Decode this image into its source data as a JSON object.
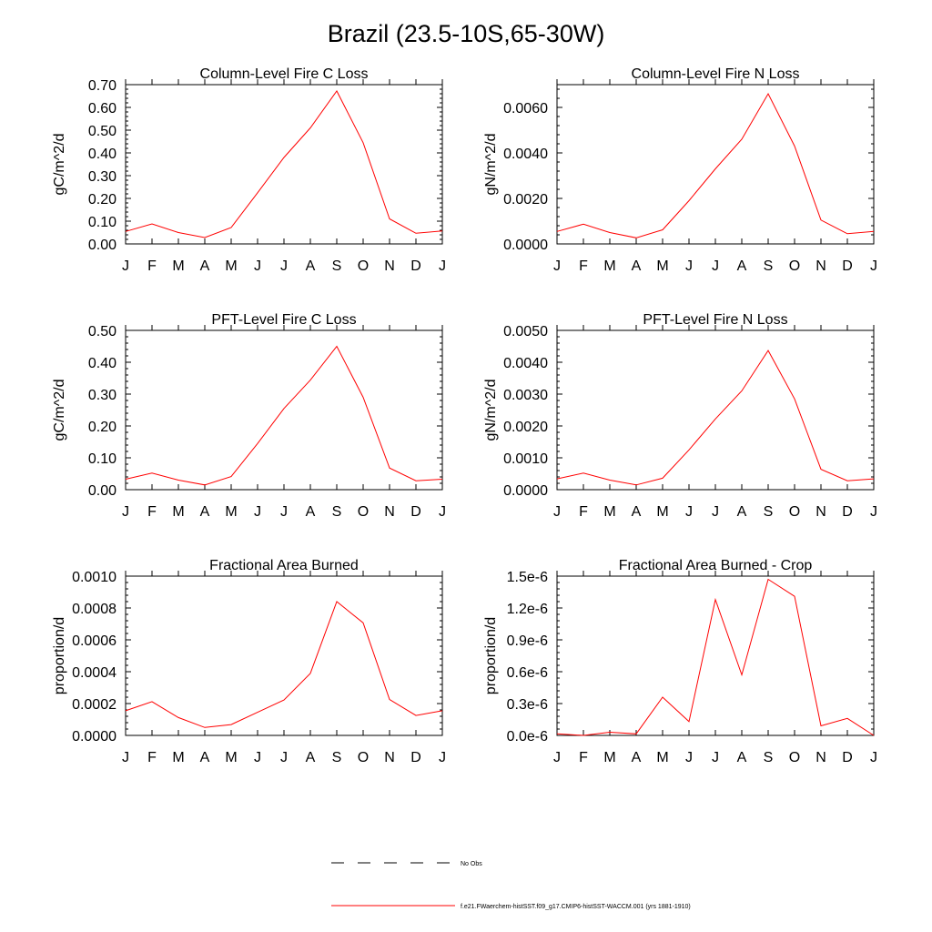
{
  "title": "Brazil (23.5-10S,65-30W)",
  "months": [
    "J",
    "F",
    "M",
    "A",
    "M",
    "J",
    "J",
    "A",
    "S",
    "O",
    "N",
    "D",
    "J"
  ],
  "colors": {
    "series": "#ff0000",
    "axis": "#000000"
  },
  "legend": [
    {
      "label": "No Obs",
      "style": "dashed",
      "color": "#000000"
    },
    {
      "label": "f.e21.FWaerchem-histSST.f09_g17.CMIP6-histSST-WACCM.001 (yrs 1881-1910)",
      "style": "solid",
      "color": "#ff0000"
    }
  ],
  "chart_data": [
    {
      "type": "line",
      "title": "Column-Level Fire C Loss",
      "ylabel": "gC/m^2/d",
      "ylim": [
        0,
        0.7
      ],
      "yticks": [
        "0.00",
        "0.10",
        "0.20",
        "0.30",
        "0.40",
        "0.50",
        "0.60",
        "0.70"
      ],
      "ytick_values": [
        0,
        0.1,
        0.2,
        0.3,
        0.4,
        0.5,
        0.6,
        0.7
      ],
      "values": [
        0.055,
        0.088,
        0.05,
        0.028,
        0.072,
        0.225,
        0.38,
        0.51,
        0.672,
        0.445,
        0.11,
        0.047,
        0.057
      ]
    },
    {
      "type": "line",
      "title": "Column-Level Fire N Loss",
      "ylabel": "gN/m^2/d",
      "ylim": [
        0,
        0.007
      ],
      "yticks": [
        "0.0000",
        "0.0020",
        "0.0040",
        "0.0060"
      ],
      "ytick_values": [
        0,
        0.002,
        0.004,
        0.006
      ],
      "values": [
        0.00055,
        0.00087,
        0.0005,
        0.00027,
        0.00062,
        0.0019,
        0.0033,
        0.0046,
        0.0066,
        0.0043,
        0.00105,
        0.00045,
        0.00055
      ]
    },
    {
      "type": "line",
      "title": "PFT-Level Fire C Loss",
      "ylabel": "gC/m^2/d",
      "ylim": [
        0,
        0.5
      ],
      "yticks": [
        "0.00",
        "0.10",
        "0.20",
        "0.30",
        "0.40",
        "0.50"
      ],
      "ytick_values": [
        0,
        0.1,
        0.2,
        0.3,
        0.4,
        0.5
      ],
      "values": [
        0.033,
        0.052,
        0.03,
        0.015,
        0.041,
        0.145,
        0.255,
        0.344,
        0.45,
        0.29,
        0.068,
        0.028,
        0.033
      ]
    },
    {
      "type": "line",
      "title": "PFT-Level Fire N Loss",
      "ylabel": "gN/m^2/d",
      "ylim": [
        0,
        0.005
      ],
      "yticks": [
        "0.0000",
        "0.0010",
        "0.0020",
        "0.0030",
        "0.0040",
        "0.0050"
      ],
      "ytick_values": [
        0,
        0.001,
        0.002,
        0.003,
        0.004,
        0.005
      ],
      "values": [
        0.00034,
        0.00052,
        0.0003,
        0.00015,
        0.00036,
        0.00125,
        0.00222,
        0.0031,
        0.00437,
        0.00285,
        0.00064,
        0.00028,
        0.00034
      ]
    },
    {
      "type": "line",
      "title": "Fractional Area Burned",
      "ylabel": "proportion/d",
      "ylim": [
        0,
        0.001
      ],
      "yticks": [
        "0.0000",
        "0.0002",
        "0.0004",
        "0.0006",
        "0.0008",
        "0.0010"
      ],
      "ytick_values": [
        0,
        0.0002,
        0.0004,
        0.0006,
        0.0008,
        0.001
      ],
      "values": [
        0.000155,
        0.000212,
        0.000112,
        5e-05,
        6.8e-05,
        0.000145,
        0.000222,
        0.00039,
        0.00084,
        0.000707,
        0.000225,
        0.000125,
        0.000155
      ]
    },
    {
      "type": "line",
      "title": "Fractional Area Burned - Crop",
      "ylabel": "proportion/d",
      "ylim": [
        0,
        1.5e-06
      ],
      "yticks": [
        "0.0e-6",
        "0.3e-6",
        "0.6e-6",
        "0.9e-6",
        "1.2e-6",
        "1.5e-6"
      ],
      "ytick_values": [
        0,
        3e-07,
        6e-07,
        9e-07,
        1.2e-06,
        1.5e-06
      ],
      "values": [
        1.5e-08,
        0,
        3e-08,
        1.5e-08,
        3.6e-07,
        1.3e-07,
        1.28e-06,
        5.7e-07,
        1.47e-06,
        1.31e-06,
        9e-08,
        1.6e-07,
        0
      ]
    }
  ]
}
